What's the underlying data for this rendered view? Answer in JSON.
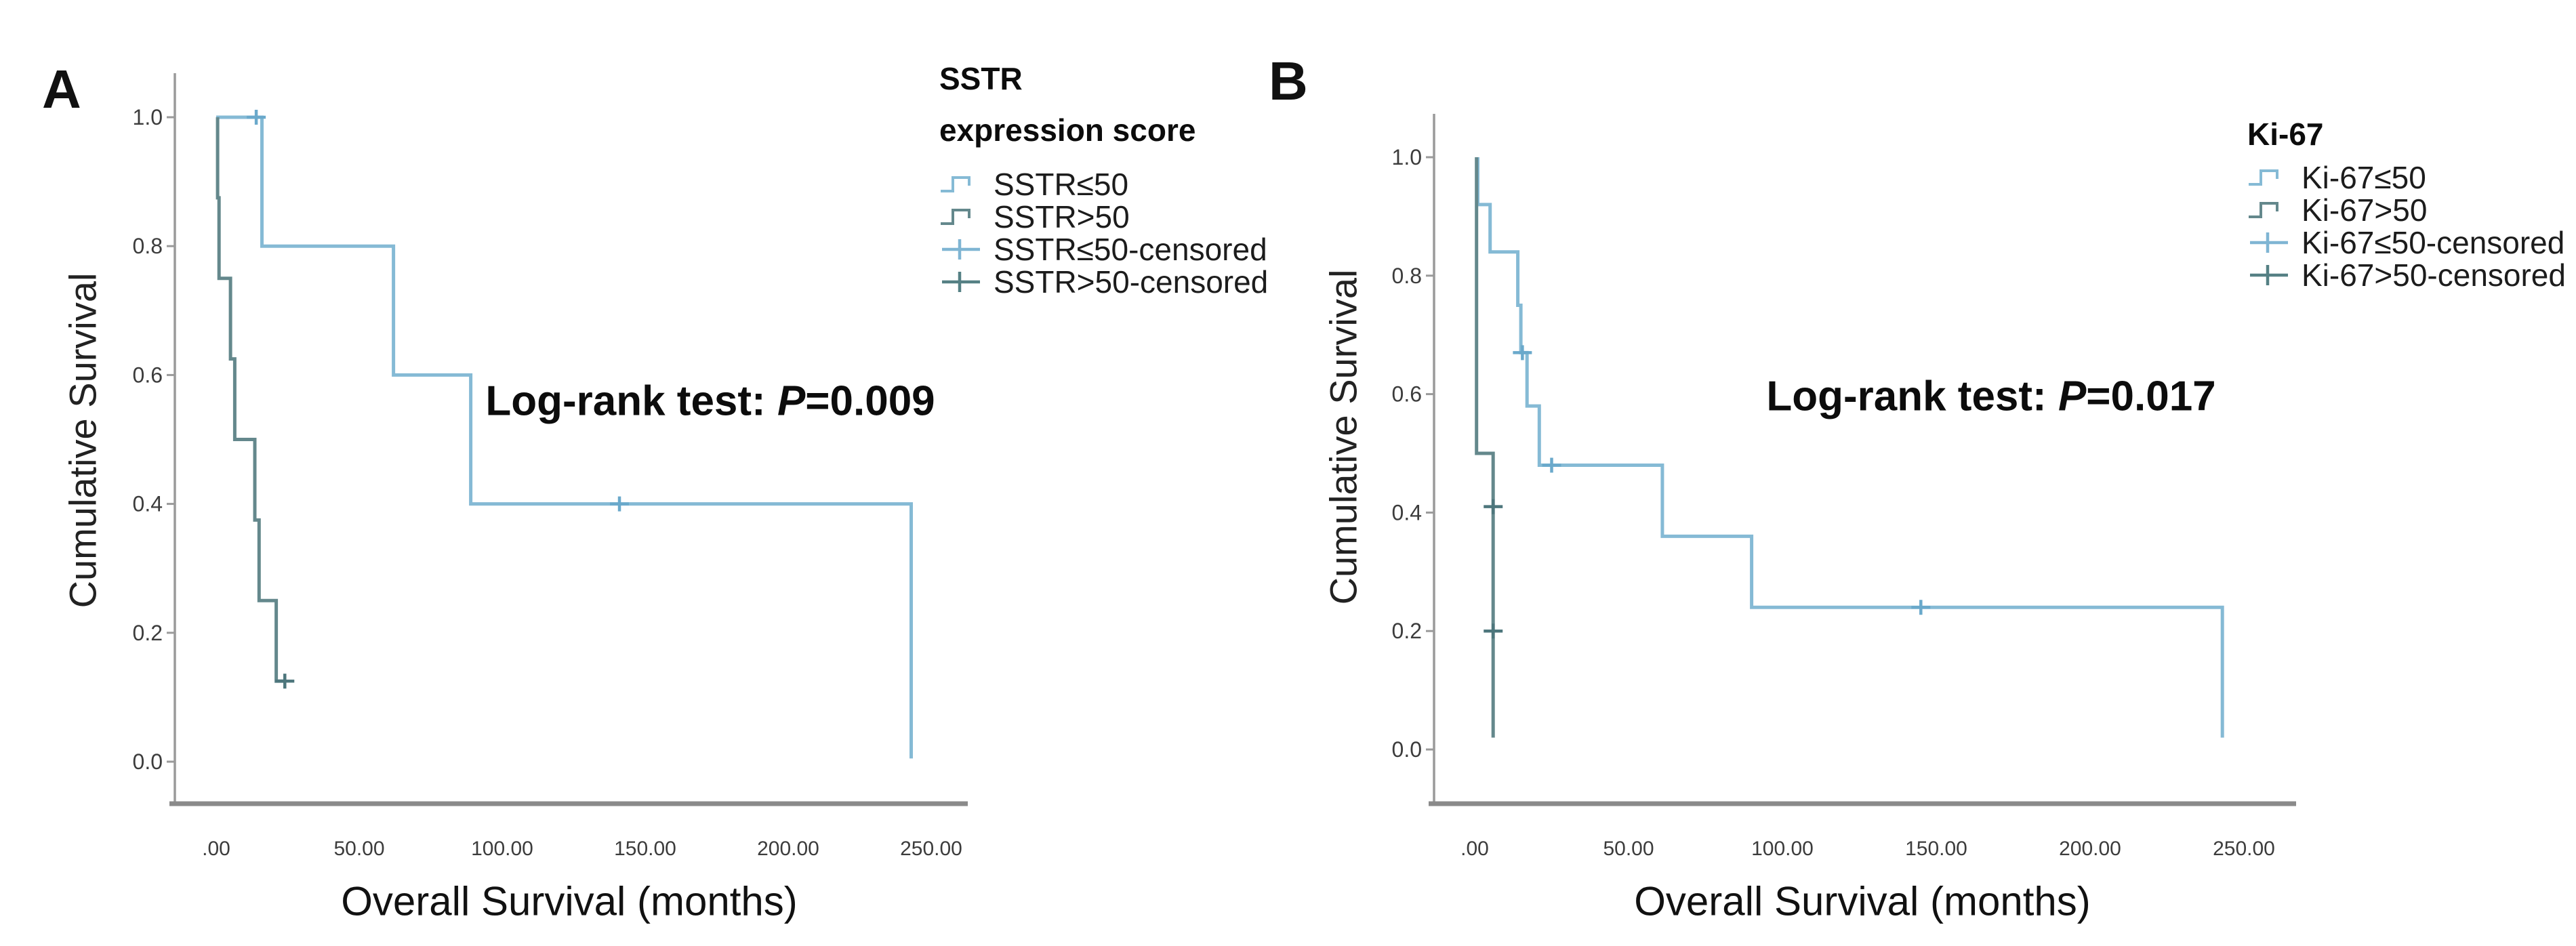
{
  "figure": {
    "background": "#ffffff",
    "panels": [
      {
        "letter": "A",
        "ylabel": "Cumulative Survival",
        "xlabel": "Overall Survival (months)",
        "annotation": {
          "pre": "Log-rank test: ",
          "p": "P",
          "post": "=0.009"
        },
        "legend": {
          "title_line1": "SSTR",
          "title_line2": "expression score",
          "items": [
            {
              "label": "SSTR≤50",
              "glyph": "step",
              "color": "#85bad5"
            },
            {
              "label": "SSTR>50",
              "glyph": "step",
              "color": "#64888c"
            },
            {
              "label": "SSTR≤50-censored",
              "glyph": "plus",
              "color": "#7fb5d3"
            },
            {
              "label": "SSTR>50-censored",
              "glyph": "plus",
              "color": "#558084"
            }
          ]
        }
      },
      {
        "letter": "B",
        "ylabel": "Cumulative Survival",
        "xlabel": "Overall Survival (months)",
        "annotation": {
          "pre": "Log-rank test: ",
          "p": "P",
          "post": "=0.017"
        },
        "legend": {
          "title_line1": "Ki-67",
          "title_line2": "",
          "items": [
            {
              "label": "Ki-67≤50",
              "glyph": "step",
              "color": "#85bad5"
            },
            {
              "label": "Ki-67>50",
              "glyph": "step",
              "color": "#64888c"
            },
            {
              "label": "Ki-67≤50-censored",
              "glyph": "plus",
              "color": "#7fb5d3"
            },
            {
              "label": "Ki-67>50-censored",
              "glyph": "plus",
              "color": "#558084"
            }
          ]
        }
      }
    ]
  },
  "chart_data": [
    {
      "type": "line",
      "subtype": "kaplan-meier-step",
      "panel": "A",
      "group_variable": "SSTR expression score",
      "xlabel": "Overall Survival (months)",
      "ylabel": "Cumulative Survival",
      "xlim": [
        -8,
        265
      ],
      "ylim": [
        0,
        1.05
      ],
      "grid": false,
      "legend_position": "right-top",
      "annotation": "Log-rank test: P=0.009",
      "x_ticks": [
        {
          "value": 0,
          "label": ".00"
        },
        {
          "value": 50,
          "label": "50.00"
        },
        {
          "value": 100,
          "label": "100.00"
        },
        {
          "value": 150,
          "label": "150.00"
        },
        {
          "value": 200,
          "label": "200.00"
        },
        {
          "value": 250,
          "label": "250.00"
        }
      ],
      "y_ticks": [
        {
          "value": 0.0,
          "label": "0.0"
        },
        {
          "value": 0.2,
          "label": "0.2"
        },
        {
          "value": 0.4,
          "label": "0.4"
        },
        {
          "value": 0.6,
          "label": "0.6"
        },
        {
          "value": 0.8,
          "label": "0.8"
        },
        {
          "value": 1.0,
          "label": "1.0"
        }
      ],
      "series": [
        {
          "name": "SSTR≤50",
          "color": "#85bad5",
          "censor_color": "#6aa9cb",
          "step_points": [
            [
              0,
              1.0
            ],
            [
              16,
              1.0
            ],
            [
              16,
              0.8
            ],
            [
              62,
              0.8
            ],
            [
              62,
              0.6
            ],
            [
              89,
              0.6
            ],
            [
              89,
              0.4
            ],
            [
              243,
              0.4
            ],
            [
              243,
              0.005
            ]
          ],
          "censored": [
            [
              14,
              1.0
            ],
            [
              141,
              0.4
            ]
          ]
        },
        {
          "name": "SSTR>50",
          "color": "#64888c",
          "censor_color": "#4d767c",
          "step_points": [
            [
              0.5,
              1.0
            ],
            [
              0.5,
              0.875
            ],
            [
              1,
              0.875
            ],
            [
              1,
              0.75
            ],
            [
              5,
              0.75
            ],
            [
              5,
              0.625
            ],
            [
              6.5,
              0.625
            ],
            [
              6.5,
              0.5
            ],
            [
              13.5,
              0.5
            ],
            [
              13.5,
              0.375
            ],
            [
              15,
              0.375
            ],
            [
              15,
              0.25
            ],
            [
              21,
              0.25
            ],
            [
              21,
              0.125
            ],
            [
              24,
              0.125
            ]
          ],
          "censored": [
            [
              24,
              0.125
            ]
          ]
        }
      ]
    },
    {
      "type": "line",
      "subtype": "kaplan-meier-step",
      "panel": "B",
      "group_variable": "Ki-67",
      "xlabel": "Overall Survival (months)",
      "ylabel": "Cumulative Survival",
      "xlim": [
        -8,
        265
      ],
      "ylim": [
        0,
        1.05
      ],
      "grid": false,
      "legend_position": "right-top",
      "annotation": "Log-rank test: P=0.017",
      "x_ticks": [
        {
          "value": 0,
          "label": ".00"
        },
        {
          "value": 50,
          "label": "50.00"
        },
        {
          "value": 100,
          "label": "100.00"
        },
        {
          "value": 150,
          "label": "150.00"
        },
        {
          "value": 200,
          "label": "200.00"
        },
        {
          "value": 250,
          "label": "250.00"
        }
      ],
      "y_ticks": [
        {
          "value": 0.0,
          "label": "0.0"
        },
        {
          "value": 0.2,
          "label": "0.2"
        },
        {
          "value": 0.4,
          "label": "0.4"
        },
        {
          "value": 0.6,
          "label": "0.6"
        },
        {
          "value": 0.8,
          "label": "0.8"
        },
        {
          "value": 1.0,
          "label": "1.0"
        }
      ],
      "series": [
        {
          "name": "Ki-67≤50",
          "color": "#85bad5",
          "censor_color": "#6aa9cb",
          "step_points": [
            [
              1,
              1.0
            ],
            [
              1,
              0.92
            ],
            [
              5,
              0.92
            ],
            [
              5,
              0.84
            ],
            [
              14,
              0.84
            ],
            [
              14,
              0.75
            ],
            [
              15,
              0.75
            ],
            [
              15,
              0.67
            ],
            [
              17,
              0.67
            ],
            [
              17,
              0.58
            ],
            [
              21,
              0.58
            ],
            [
              21,
              0.48
            ],
            [
              61,
              0.48
            ],
            [
              61,
              0.36
            ],
            [
              90,
              0.36
            ],
            [
              90,
              0.24
            ],
            [
              243,
              0.24
            ],
            [
              243,
              0.02
            ]
          ],
          "censored": [
            [
              15.5,
              0.67
            ],
            [
              25,
              0.48
            ],
            [
              145,
              0.24
            ]
          ]
        },
        {
          "name": "Ki-67>50",
          "color": "#64888c",
          "censor_color": "#4d767c",
          "step_points": [
            [
              0.6,
              1.0
            ],
            [
              0.6,
              0.5
            ],
            [
              6,
              0.5
            ],
            [
              6,
              0.02
            ]
          ],
          "censored": [
            [
              6,
              0.41
            ],
            [
              6,
              0.2
            ]
          ]
        }
      ]
    }
  ]
}
